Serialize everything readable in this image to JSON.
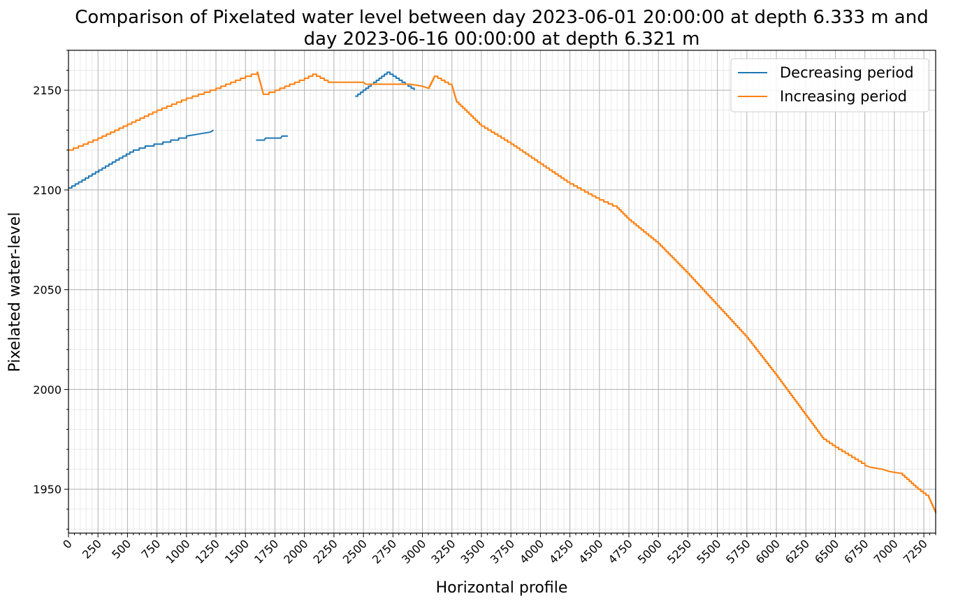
{
  "chart_data": {
    "type": "line",
    "title_line1": "Comparison of Pixelated water level between day 2023-06-01 20:00:00 at depth 6.333 m and",
    "title_line2": "day 2023-06-16 00:00:00 at depth 6.321 m",
    "xlabel": "Horizontal profile",
    "ylabel": "Pixelated water-level",
    "xlim": [
      0,
      7350
    ],
    "ylim": [
      1928,
      2170
    ],
    "xticks": [
      0,
      250,
      500,
      750,
      1000,
      1250,
      1500,
      1750,
      2000,
      2250,
      2500,
      2750,
      3000,
      3250,
      3500,
      3750,
      4000,
      4250,
      4500,
      4750,
      5000,
      5250,
      5500,
      5750,
      6000,
      6250,
      6500,
      6750,
      7000,
      7250
    ],
    "yticks": [
      1950,
      2000,
      2050,
      2100,
      2150
    ],
    "grid": true,
    "legend_position": "top-right",
    "series": [
      {
        "name": "Decreasing period",
        "color": "#1f77b4",
        "segments": [
          [
            [
              0,
              2101
            ],
            [
              200,
              2108
            ],
            [
              400,
              2115
            ],
            [
              550,
              2120
            ],
            [
              650,
              2122
            ],
            [
              800,
              2124
            ],
            [
              1000,
              2127
            ],
            [
              1100,
              2128
            ],
            [
              1200,
              2129
            ],
            [
              1230,
              2130
            ]
          ],
          [
            [
              1590,
              2125
            ],
            [
              1660,
              2125
            ],
            [
              1670,
              2126
            ],
            [
              1800,
              2126
            ],
            [
              1810,
              2127
            ],
            [
              1860,
              2127
            ]
          ],
          [
            [
              2430,
              2147
            ],
            [
              2700,
              2159
            ],
            [
              2930,
              2150
            ]
          ]
        ]
      },
      {
        "name": "Increasing period",
        "color": "#ff7f0e",
        "segments": [
          [
            [
              0,
              2120
            ],
            [
              250,
              2126
            ],
            [
              500,
              2133
            ],
            [
              750,
              2140
            ],
            [
              1000,
              2146
            ],
            [
              1250,
              2151
            ],
            [
              1500,
              2157
            ],
            [
              1600,
              2159
            ],
            [
              1650,
              2148
            ],
            [
              1750,
              2150
            ],
            [
              2000,
              2156
            ],
            [
              2070,
              2158
            ],
            [
              2200,
              2154
            ],
            [
              2500,
              2154
            ],
            [
              2520,
              2153
            ],
            [
              2900,
              2153
            ],
            [
              3000,
              2152
            ],
            [
              3050,
              2151
            ],
            [
              3100,
              2157
            ],
            [
              3250,
              2152
            ],
            [
              3290,
              2144
            ],
            [
              3500,
              2132
            ],
            [
              3750,
              2123
            ],
            [
              4000,
              2113
            ],
            [
              4250,
              2103
            ],
            [
              4500,
              2095
            ],
            [
              4650,
              2091
            ],
            [
              4750,
              2085
            ],
            [
              5000,
              2073
            ],
            [
              5250,
              2058
            ],
            [
              5500,
              2042
            ],
            [
              5750,
              2026
            ],
            [
              6000,
              2007
            ],
            [
              6250,
              1987
            ],
            [
              6400,
              1975
            ],
            [
              6500,
              1971
            ],
            [
              6750,
              1962
            ],
            [
              6800,
              1961
            ],
            [
              6900,
              1960
            ],
            [
              6950,
              1959
            ],
            [
              7050,
              1958
            ],
            [
              7200,
              1950
            ],
            [
              7290,
              1946
            ],
            [
              7350,
              1938
            ]
          ]
        ]
      }
    ]
  }
}
